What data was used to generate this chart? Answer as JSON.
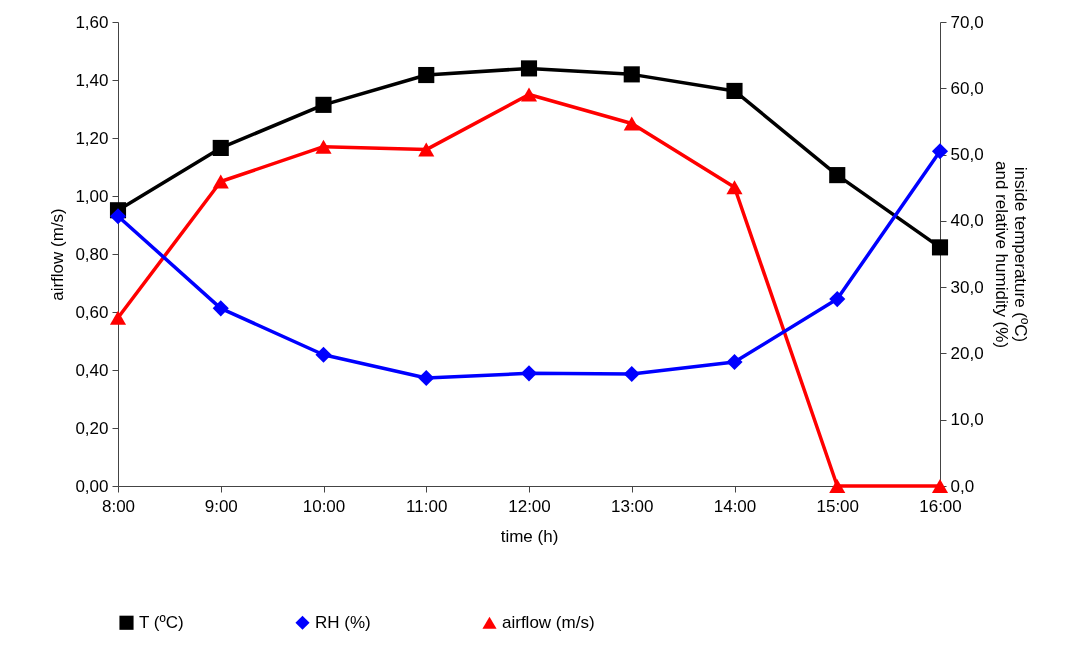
{
  "chart_data": {
    "type": "line",
    "xlabel": "time (h)",
    "ylabel": "airflow (m/s)",
    "y2label": "inside temperature (ºC) and relative humidity (%)",
    "categories": [
      "8:00",
      "9:00",
      "10:00",
      "11:00",
      "12:00",
      "13:00",
      "14:00",
      "15:00",
      "16:00"
    ],
    "series": [
      {
        "name": "T (ºC)",
        "color": "#000000",
        "marker": "square",
        "axis": "y2",
        "values": [
          41.6,
          51.0,
          57.5,
          62.0,
          63.0,
          62.1,
          59.6,
          46.9,
          36.0
        ]
      },
      {
        "name": "RH (%)",
        "color": "#0000ff",
        "marker": "diamond",
        "axis": "y2",
        "values": [
          40.7,
          26.8,
          19.8,
          16.3,
          17.0,
          16.9,
          18.7,
          28.2,
          50.5
        ]
      },
      {
        "name": "airflow (m/s)",
        "color": "#ff0000",
        "marker": "triangle",
        "values": [
          0.58,
          1.05,
          1.17,
          1.16,
          1.35,
          1.25,
          1.03,
          0,
          0
        ]
      }
    ],
    "ylim": [
      0,
      1.6
    ],
    "yticks": [
      {
        "value": 0,
        "label": "0,00"
      },
      {
        "value": 0.2,
        "label": "0,20"
      },
      {
        "value": 0.4,
        "label": "0,40"
      },
      {
        "value": 0.6,
        "label": "0,60"
      },
      {
        "value": 0.8,
        "label": "0,80"
      },
      {
        "value": 1.0,
        "label": "1,00"
      },
      {
        "value": 1.2,
        "label": "1,20"
      },
      {
        "value": 1.4,
        "label": "1,40"
      },
      {
        "value": 1.6,
        "label": "1,60"
      }
    ],
    "y2lim": [
      0,
      70
    ],
    "y2ticks": [
      {
        "value": 0,
        "label": "0,0"
      },
      {
        "value": 10,
        "label": "10,0"
      },
      {
        "value": 20,
        "label": "20,0"
      },
      {
        "value": 30,
        "label": "30,0"
      },
      {
        "value": 40,
        "label": "40,0"
      },
      {
        "value": 50,
        "label": "50,0"
      },
      {
        "value": 60,
        "label": "60,0"
      },
      {
        "value": 70,
        "label": "70,0"
      }
    ],
    "grid": false,
    "legend": "bottom",
    "line_style": "solid"
  }
}
